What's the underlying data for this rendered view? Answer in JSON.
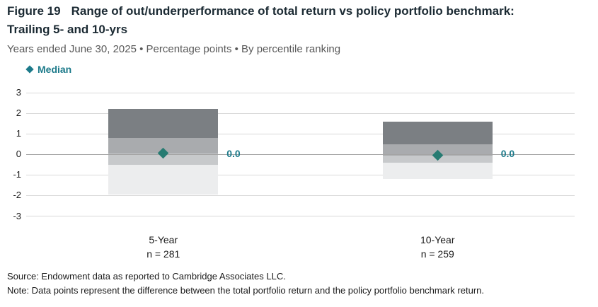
{
  "header": {
    "figure_label": "Figure 19",
    "title": "Range of out/underperformance of total return vs policy portfolio benchmark:",
    "title_line2": "Trailing 5- and 10-yrs",
    "subtitle": "Years ended June 30, 2025 • Percentage points • By percentile ranking"
  },
  "legend": {
    "marker": "diamond",
    "label": "Median"
  },
  "chart_data": {
    "type": "bar",
    "subtype": "floating-percentile-range-bars",
    "title": "Range of out/underperformance of total return vs policy portfolio benchmark: Trailing 5- and 10-yrs",
    "xlabel": "",
    "ylabel": "Percentage points",
    "ylim": [
      -3,
      3
    ],
    "yticks": [
      3,
      2,
      1,
      0,
      -1,
      -2,
      -3
    ],
    "grid": true,
    "legend_position": "top-left",
    "categories": [
      "5-Year",
      "10-Year"
    ],
    "groups": [
      {
        "category": "5-Year",
        "n_label": "n = 281",
        "percentile_bounds": {
          "p5": 2.2,
          "p25": 0.8,
          "p50": 0.05,
          "p75": -0.5,
          "p95": -1.95
        },
        "median": 0.05,
        "median_label": "0.0"
      },
      {
        "category": "10-Year",
        "n_label": "n = 259",
        "percentile_bounds": {
          "p5": 1.6,
          "p25": 0.5,
          "p50": -0.05,
          "p75": -0.4,
          "p95": -1.2
        },
        "median": -0.05,
        "median_label": "0.0"
      }
    ]
  },
  "footer": {
    "source": "Source: Endowment data as reported to Cambridge Associates LLC.",
    "note": "Note: Data points represent the difference between the total portfolio return and the policy portfolio benchmark return."
  },
  "colors": {
    "title": "#1b2a33",
    "subtitle": "#595959",
    "text": "#1a1a1a",
    "accent_teal": "#1c7a8a",
    "diamond_teal": "#267b72",
    "gridline": "#d9d9d9",
    "zero_line": "#a3a3a3",
    "segments": [
      "#7b7f83",
      "#a9abae",
      "#c7c9cb",
      "#ecedee"
    ]
  }
}
